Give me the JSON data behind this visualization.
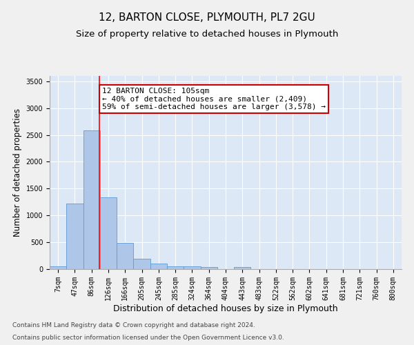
{
  "title": "12, BARTON CLOSE, PLYMOUTH, PL7 2GU",
  "subtitle": "Size of property relative to detached houses in Plymouth",
  "xlabel": "Distribution of detached houses by size in Plymouth",
  "ylabel": "Number of detached properties",
  "bin_labels": [
    "7sqm",
    "47sqm",
    "86sqm",
    "126sqm",
    "166sqm",
    "205sqm",
    "245sqm",
    "285sqm",
    "324sqm",
    "364sqm",
    "404sqm",
    "443sqm",
    "483sqm",
    "522sqm",
    "562sqm",
    "602sqm",
    "641sqm",
    "681sqm",
    "721sqm",
    "760sqm",
    "800sqm"
  ],
  "bar_values": [
    50,
    1220,
    2580,
    1340,
    490,
    190,
    105,
    50,
    50,
    35,
    0,
    35,
    0,
    0,
    0,
    0,
    0,
    0,
    0,
    0,
    0
  ],
  "bar_color": "#aec6e8",
  "bar_edge_color": "#5b9bd5",
  "ylim": [
    0,
    3600
  ],
  "yticks": [
    0,
    500,
    1000,
    1500,
    2000,
    2500,
    3000,
    3500
  ],
  "red_line_x": 2.47,
  "annotation_text": "12 BARTON CLOSE: 105sqm\n← 40% of detached houses are smaller (2,409)\n59% of semi-detached houses are larger (3,578) →",
  "annotation_box_color": "#ffffff",
  "annotation_box_edge": "#cc0000",
  "footnote1": "Contains HM Land Registry data © Crown copyright and database right 2024.",
  "footnote2": "Contains public sector information licensed under the Open Government Licence v3.0.",
  "fig_bg_color": "#f0f0f0",
  "plot_bg_color": "#dce8f5",
  "grid_color": "#ffffff",
  "title_fontsize": 11,
  "subtitle_fontsize": 9.5,
  "ylabel_fontsize": 8.5,
  "xlabel_fontsize": 9,
  "tick_fontsize": 7,
  "annot_fontsize": 8,
  "footnote_fontsize": 6.5
}
